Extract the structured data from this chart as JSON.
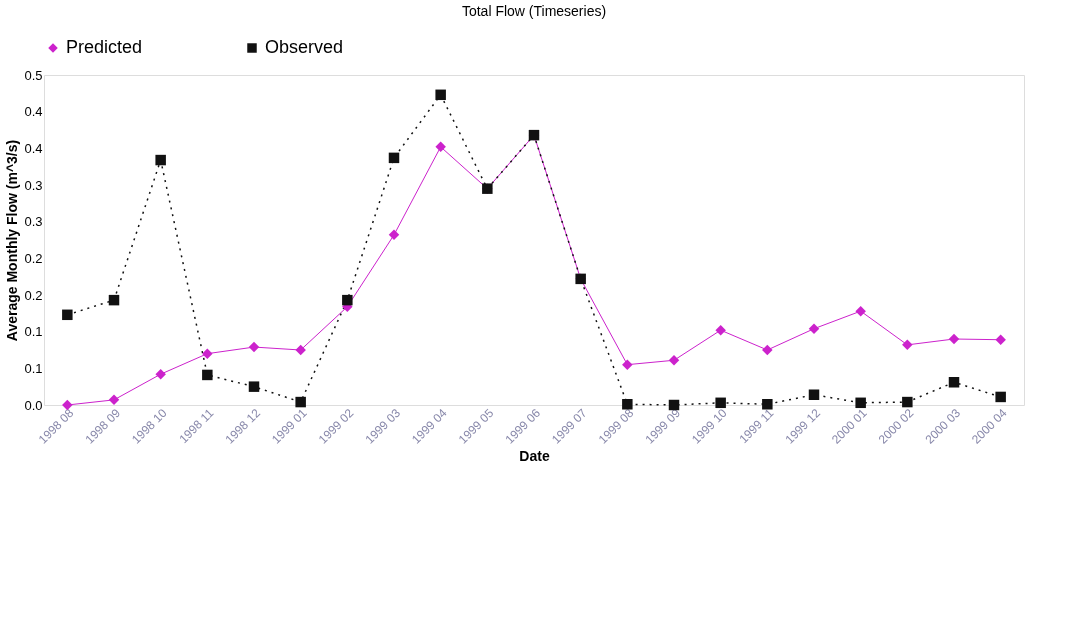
{
  "chart_data": {
    "type": "line",
    "title": "Total Flow (Timeseries)",
    "xlabel": "Date",
    "ylabel": "Average Monthly Flow (m^3/s)",
    "categories": [
      "1998 08",
      "1998 09",
      "1998 10",
      "1998 11",
      "1998 12",
      "1999 01",
      "1999 02",
      "1999 03",
      "1999 04",
      "1999 05",
      "1999 06",
      "1999 07",
      "1999 08",
      "1999 09",
      "1999 10",
      "1999 11",
      "1999 12",
      "2000 01",
      "2000 02",
      "2000 03",
      "2000 04"
    ],
    "series": [
      {
        "name": "Predicted",
        "color": "#cc22cc",
        "marker": "diamond",
        "line_style": "solid",
        "values": [
          0.0,
          0.007,
          0.042,
          0.07,
          0.079,
          0.075,
          0.134,
          0.232,
          0.352,
          0.295,
          0.368,
          0.172,
          0.055,
          0.061,
          0.102,
          0.075,
          0.104,
          0.128,
          0.082,
          0.09,
          0.089
        ]
      },
      {
        "name": "Observed",
        "color": "#111111",
        "marker": "square",
        "line_style": "dotted",
        "values": [
          0.123,
          0.143,
          0.334,
          0.041,
          0.025,
          0.004,
          0.143,
          0.337,
          0.423,
          0.295,
          0.368,
          0.172,
          0.001,
          0.0,
          0.003,
          0.001,
          0.014,
          0.003,
          0.004,
          0.031,
          0.011
        ]
      }
    ],
    "ylim": [
      0,
      0.45
    ],
    "yticks": [
      {
        "value": 0,
        "label": "0.0"
      },
      {
        "value": 0.05,
        "label": "0.1"
      },
      {
        "value": 0.1,
        "label": "0.1"
      },
      {
        "value": 0.15,
        "label": "0.2"
      },
      {
        "value": 0.2,
        "label": "0.2"
      },
      {
        "value": 0.25,
        "label": "0.3"
      },
      {
        "value": 0.3,
        "label": "0.3"
      },
      {
        "value": 0.35,
        "label": "0.4"
      },
      {
        "value": 0.4,
        "label": "0.4"
      },
      {
        "value": 0.45,
        "label": "0.5"
      }
    ],
    "grid": false,
    "legend": "top"
  }
}
